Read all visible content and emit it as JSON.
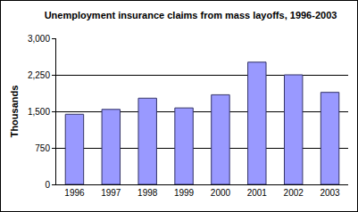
{
  "chart_data": {
    "type": "bar",
    "title": "Unemployment insurance claims from mass layoffs, 1996-2003",
    "y_label": "Thousands",
    "categories": [
      "1996",
      "1997",
      "1998",
      "1999",
      "2000",
      "2001",
      "2002",
      "2003"
    ],
    "values": [
      1440,
      1540,
      1770,
      1570,
      1840,
      2510,
      2250,
      1890
    ],
    "color": "#9999ff",
    "ylim": [
      0,
      3000
    ],
    "yticks": [
      0,
      750,
      {
        "value": 1500,
        "label": "1,500"
      },
      {
        "value": 2250,
        "label": "2,250"
      },
      {
        "value": 3000,
        "label": "3,000"
      }
    ],
    "grid": true
  }
}
